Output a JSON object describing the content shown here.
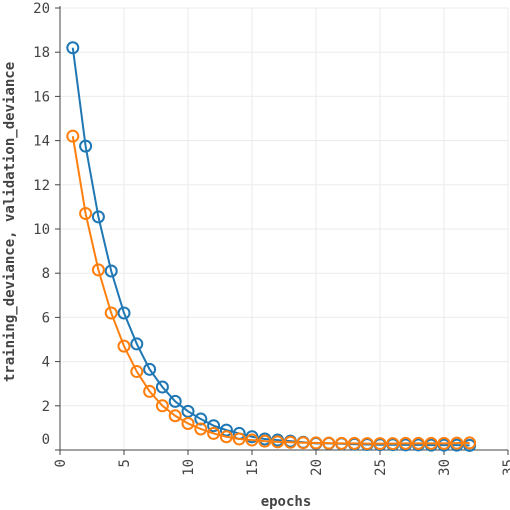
{
  "chart_data": {
    "type": "line",
    "xlabel": "epochs",
    "ylabel": "training_deviance, validation_deviance",
    "xlim": [
      0,
      35
    ],
    "ylim": [
      0,
      20
    ],
    "x_ticks": [
      0,
      5,
      10,
      15,
      20,
      25,
      30,
      35
    ],
    "y_ticks": [
      0,
      2,
      4,
      6,
      8,
      10,
      12,
      14,
      16,
      18,
      20
    ],
    "grid": true,
    "legend": "none",
    "x": [
      1,
      2,
      3,
      4,
      5,
      6,
      7,
      8,
      9,
      10,
      11,
      12,
      13,
      14,
      15,
      16,
      17,
      18,
      19,
      20,
      21,
      22,
      23,
      24,
      25,
      26,
      27,
      28,
      29,
      30,
      31,
      32
    ],
    "series": [
      {
        "color": "#1f77b4",
        "marker": "open-circle",
        "values": [
          18.2,
          13.75,
          10.55,
          8.1,
          6.2,
          4.8,
          3.65,
          2.85,
          2.2,
          1.75,
          1.4,
          1.1,
          0.9,
          0.75,
          0.6,
          0.5,
          0.45,
          0.4,
          0.35,
          0.3,
          0.3,
          0.28,
          0.26,
          0.25,
          0.24,
          0.24,
          0.23,
          0.23,
          0.22,
          0.22,
          0.22,
          0.21
        ]
      },
      {
        "color": "#ff7f0e",
        "marker": "open-circle",
        "values": [
          14.2,
          10.7,
          8.15,
          6.2,
          4.7,
          3.55,
          2.65,
          2.0,
          1.55,
          1.2,
          0.95,
          0.75,
          0.6,
          0.5,
          0.45,
          0.4,
          0.37,
          0.35,
          0.33,
          0.32,
          0.31,
          0.3,
          0.3,
          0.29,
          0.29,
          0.29,
          0.3,
          0.3,
          0.3,
          0.3,
          0.31,
          0.32
        ]
      }
    ]
  }
}
